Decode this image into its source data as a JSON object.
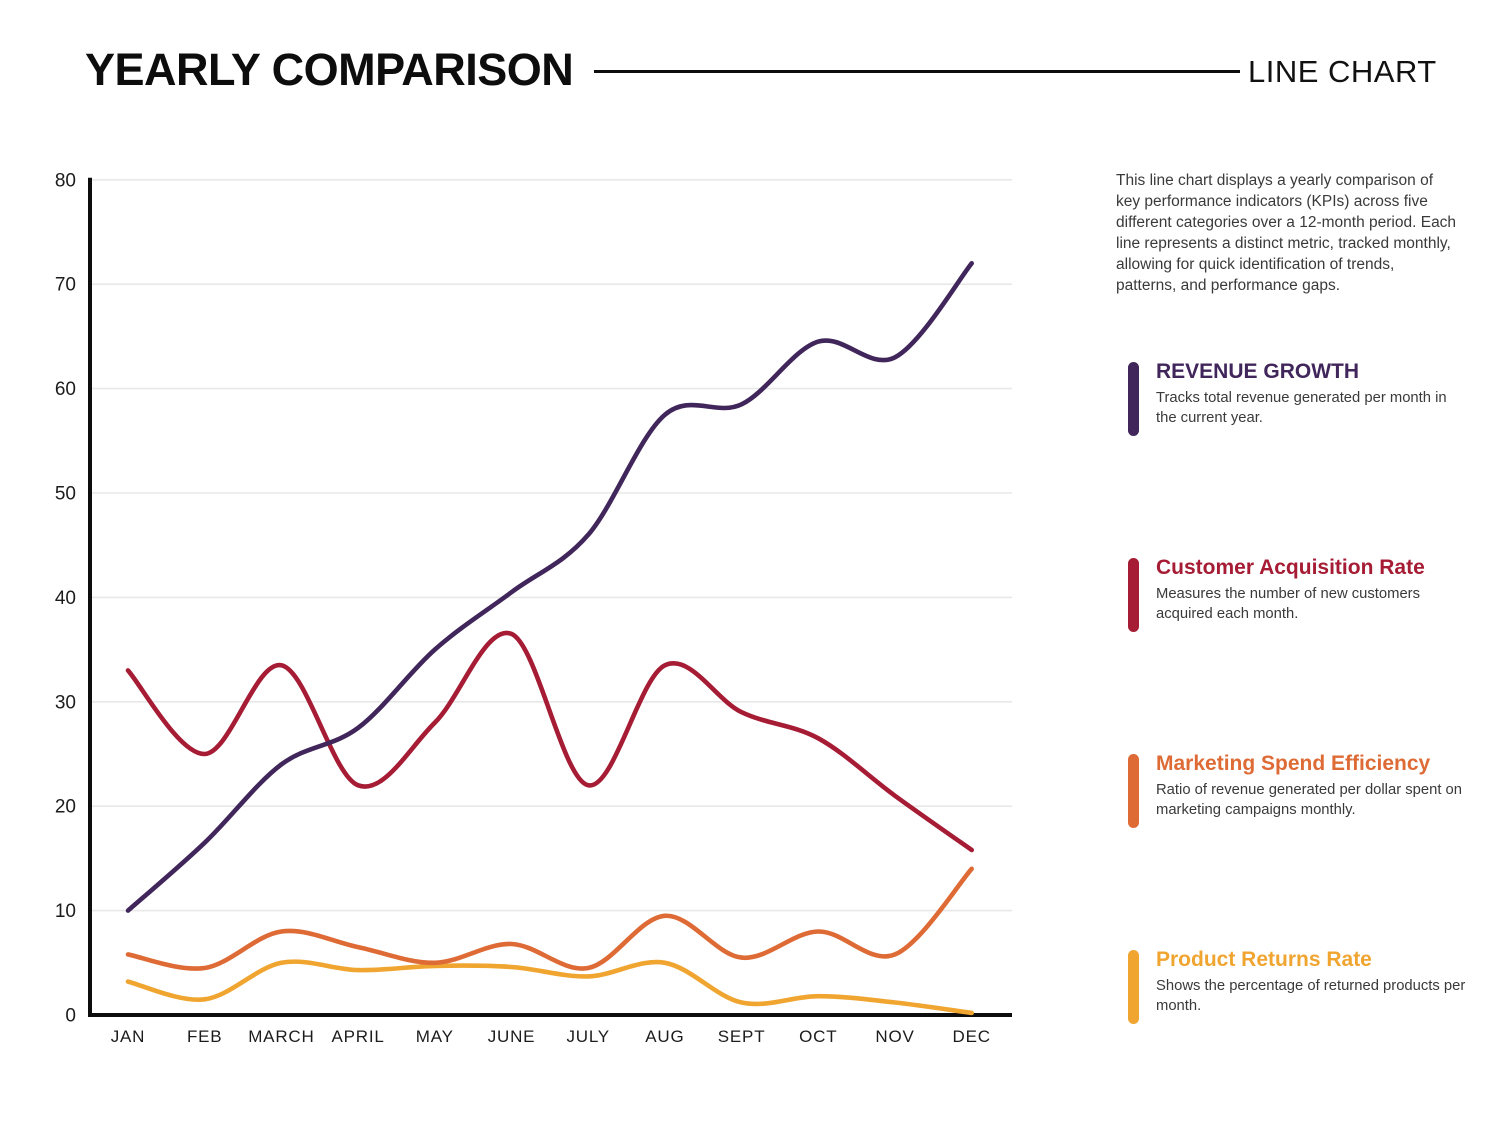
{
  "header": {
    "title": "YEARLY COMPARISON",
    "subtitle": "LINE CHART"
  },
  "description": "This line chart displays a yearly comparison of key performance indicators (KPIs) across five different categories over a 12-month period. Each line represents a distinct metric, tracked monthly, allowing for quick identification of trends, patterns, and performance gaps.",
  "chart_data": {
    "type": "line",
    "categories": [
      "JAN",
      "FEB",
      "MARCH",
      "APRIL",
      "MAY",
      "JUNE",
      "JULY",
      "AUG",
      "SEPT",
      "OCT",
      "NOV",
      "DEC"
    ],
    "y_ticks": [
      0,
      10,
      20,
      30,
      40,
      50,
      60,
      70,
      80
    ],
    "ylim": [
      0,
      80
    ],
    "grid": "horizontal",
    "legend_position": "right",
    "series": [
      {
        "name": "REVENUE GROWTH",
        "description": "Tracks total revenue generated per month in the current year.",
        "color": "#40265a",
        "values": [
          10,
          16.5,
          24,
          27.5,
          35,
          40.5,
          46,
          57.5,
          58.5,
          64.5,
          63,
          72
        ]
      },
      {
        "name": "Customer Acquisition Rate",
        "description": "Measures the number of new customers acquired each month.",
        "color": "#a51c34",
        "values": [
          33,
          25,
          33.5,
          22,
          28,
          36.5,
          22,
          33.5,
          29,
          26.5,
          21,
          15.8
        ]
      },
      {
        "name": "Marketing Spend Efficiency",
        "description": "Ratio of revenue generated per dollar spent on marketing campaigns monthly.",
        "color": "#de6b35",
        "values": [
          5.8,
          4.5,
          8,
          6.5,
          5,
          6.8,
          4.5,
          9.5,
          5.5,
          8,
          5.8,
          14
        ]
      },
      {
        "name": "Product Returns Rate",
        "description": "Shows the percentage of returned products per month.",
        "color": "#f0a531",
        "values": [
          3.2,
          1.5,
          5,
          4.3,
          4.7,
          4.6,
          3.7,
          5,
          1.2,
          1.8,
          1.2,
          0.2
        ]
      }
    ]
  }
}
